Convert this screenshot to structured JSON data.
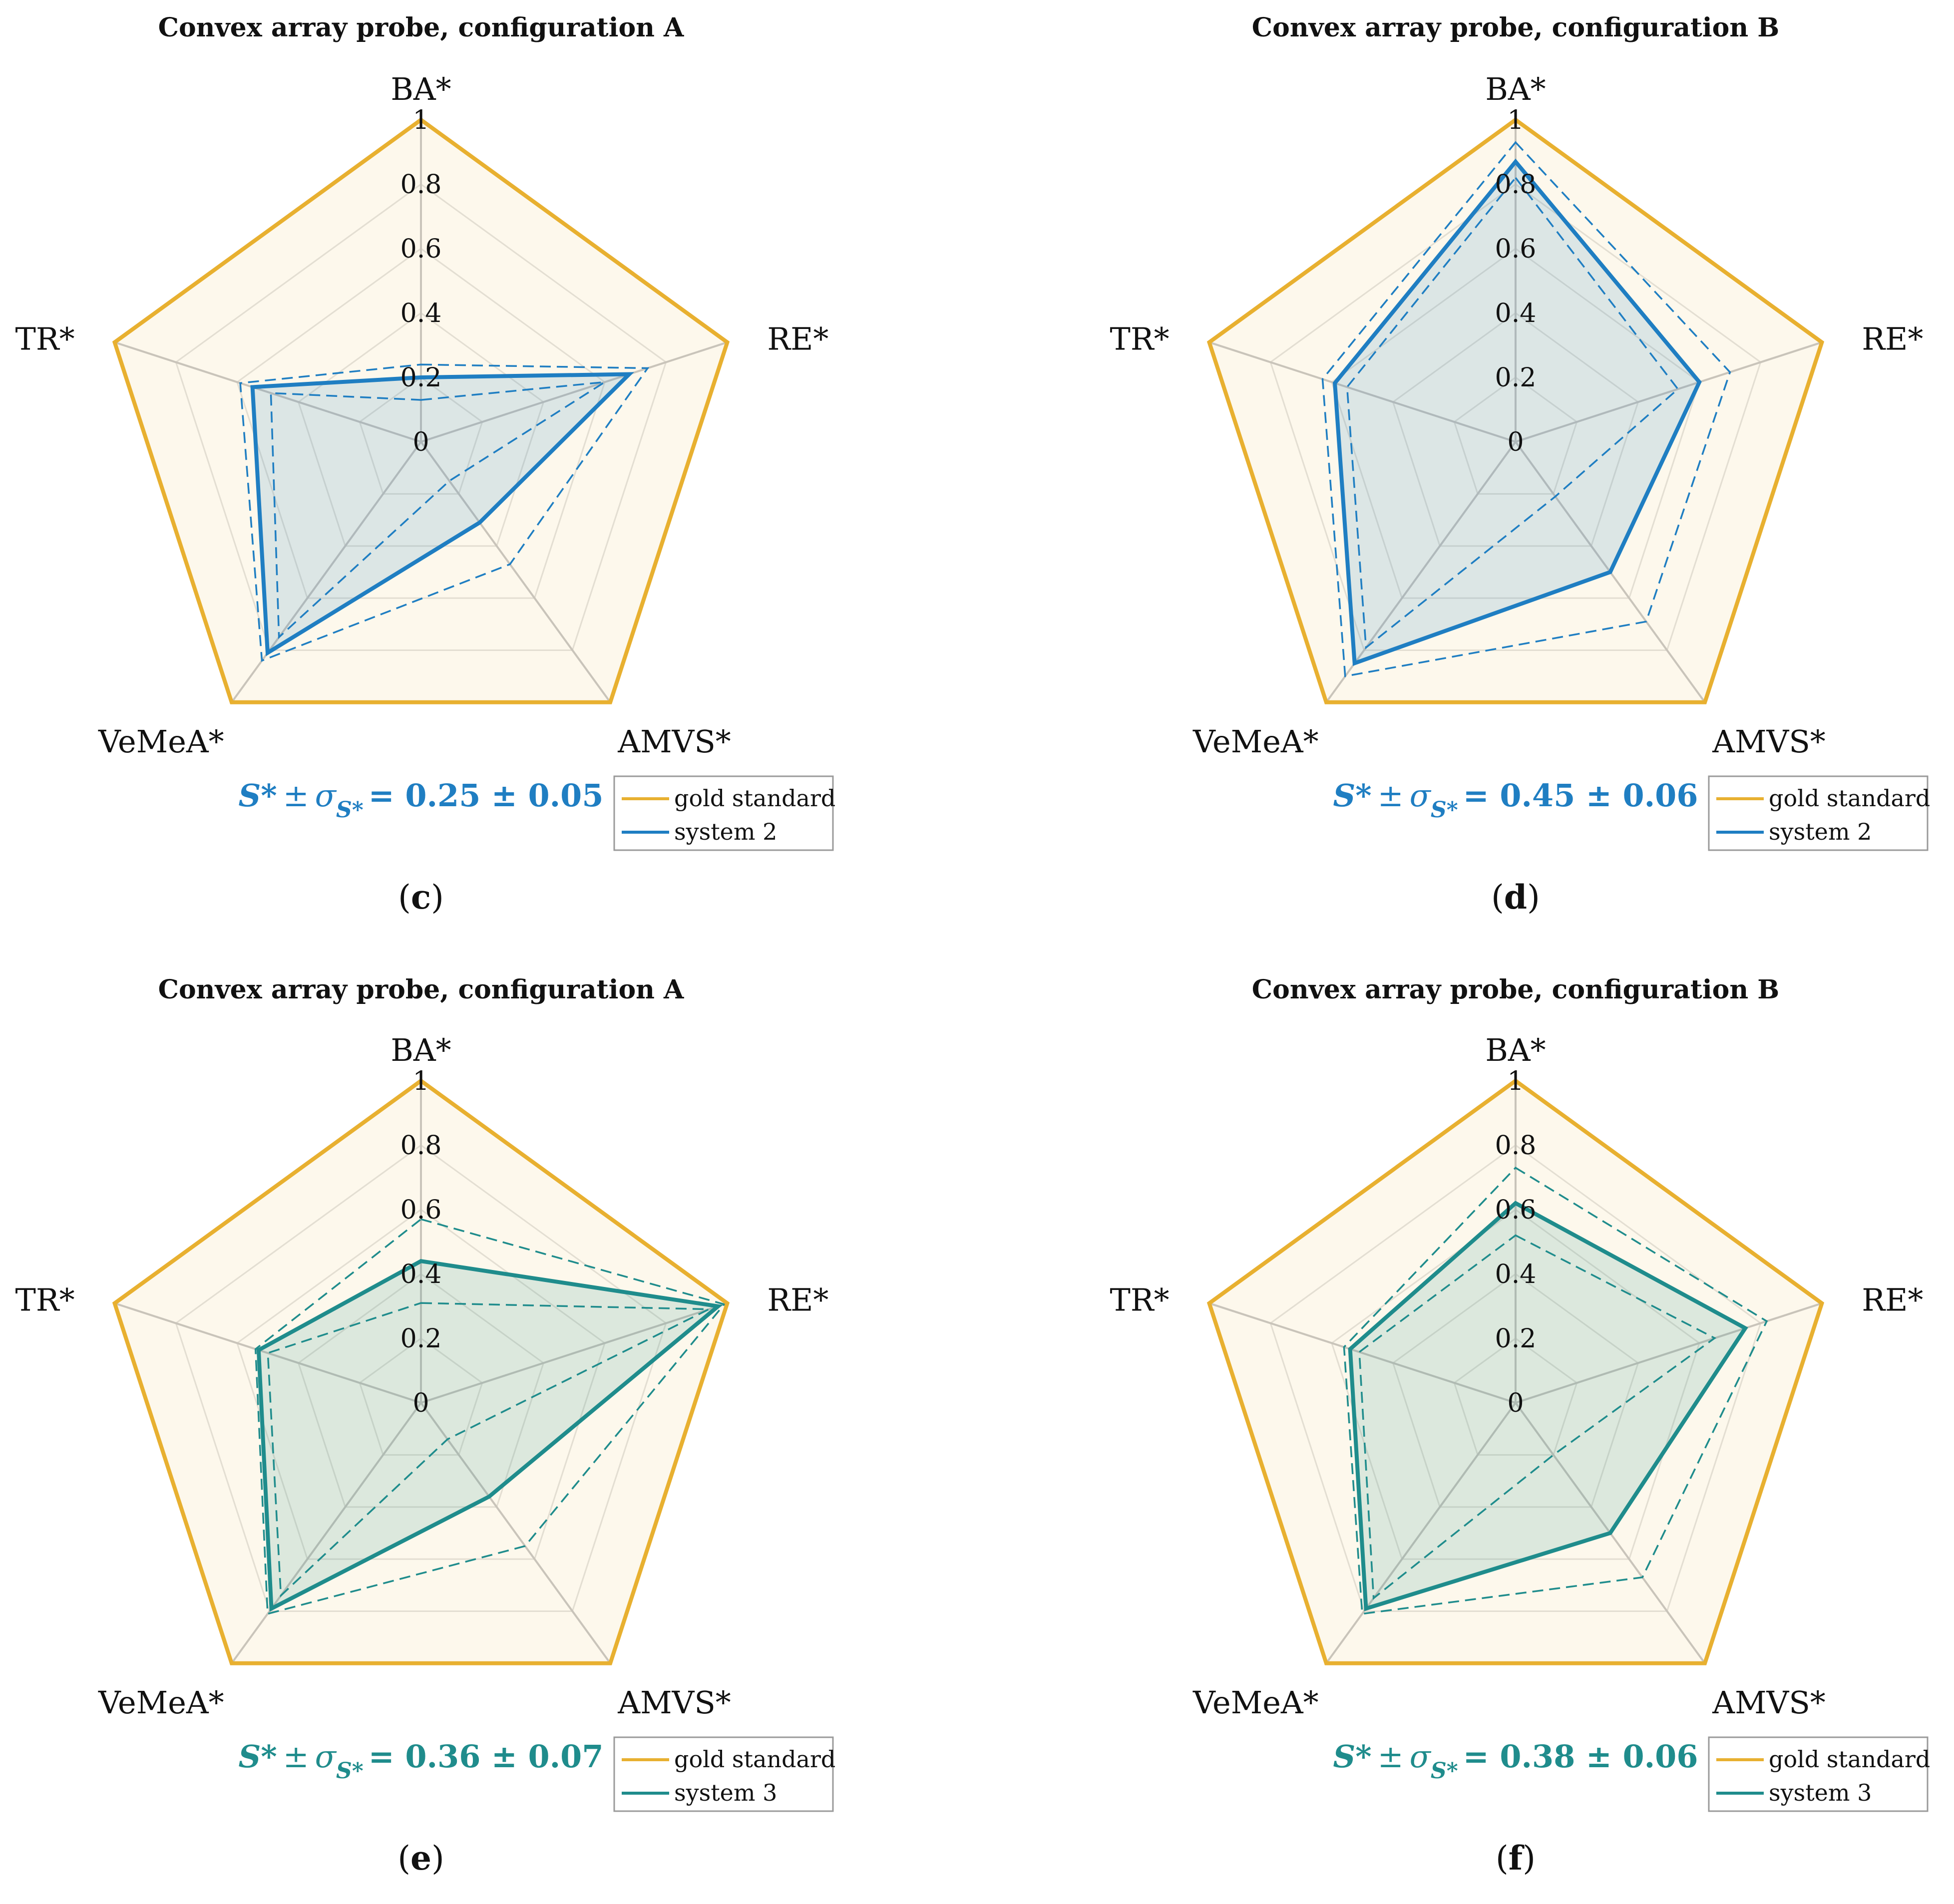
{
  "chart_data": [
    {
      "type": "radar",
      "panel": "c",
      "title": "Convex array probe, configuration A",
      "axes": [
        "BA*",
        "RE*",
        "AMVS*",
        "VeMeA*",
        "TR*"
      ],
      "ticks": [
        "0",
        "0.2",
        "0.4",
        "0.6",
        "0.8",
        "1"
      ],
      "range": [
        0,
        1
      ],
      "score_text": {
        "S": "S*",
        "pm": "±",
        "sigma": "σ",
        "sub": "S*",
        "rest": "= 0.25 ± 0.05"
      },
      "color": "#1f7ec2",
      "series": [
        {
          "name": "gold standard",
          "values": [
            1,
            1,
            1,
            1,
            1
          ],
          "color": "#e8b030"
        },
        {
          "name": "system 2",
          "values": [
            0.2,
            0.68,
            0.31,
            0.81,
            0.55
          ],
          "color": "#1f7ec2"
        }
      ],
      "bounds": {
        "upper": [
          0.24,
          0.74,
          0.47,
          0.84,
          0.59
        ],
        "lower": [
          0.13,
          0.6,
          0.15,
          0.75,
          0.49
        ]
      }
    },
    {
      "type": "radar",
      "panel": "d",
      "title": "Convex array probe, configuration B",
      "axes": [
        "BA*",
        "RE*",
        "AMVS*",
        "VeMeA*",
        "TR*"
      ],
      "ticks": [
        "0",
        "0.2",
        "0.4",
        "0.6",
        "0.8",
        "1"
      ],
      "range": [
        0,
        1
      ],
      "score_text": {
        "S": "S*",
        "pm": "±",
        "sigma": "σ",
        "sub": "S*",
        "rest": "= 0.45 ± 0.06"
      },
      "color": "#1f7ec2",
      "series": [
        {
          "name": "gold standard",
          "values": [
            1,
            1,
            1,
            1,
            1
          ],
          "color": "#e8b030"
        },
        {
          "name": "system 2",
          "values": [
            0.87,
            0.6,
            0.5,
            0.85,
            0.59
          ],
          "color": "#1f7ec2"
        }
      ],
      "bounds": {
        "upper": [
          0.93,
          0.7,
          0.69,
          0.9,
          0.63
        ],
        "lower": [
          0.82,
          0.53,
          0.21,
          0.79,
          0.55
        ]
      }
    },
    {
      "type": "radar",
      "panel": "e",
      "title": "Convex array probe, configuration A",
      "axes": [
        "BA*",
        "RE*",
        "AMVS*",
        "VeMeA*",
        "TR*"
      ],
      "ticks": [
        "0",
        "0.2",
        "0.4",
        "0.6",
        "0.8",
        "1"
      ],
      "range": [
        0,
        1
      ],
      "score_text": {
        "S": "S*",
        "pm": "±",
        "sigma": "σ",
        "sub": "S*",
        "rest": "= 0.36 ± 0.07"
      },
      "color": "#1f8c8c",
      "series": [
        {
          "name": "gold standard",
          "values": [
            1,
            1,
            1,
            1,
            1
          ],
          "color": "#e8b030"
        },
        {
          "name": "system 3",
          "values": [
            0.44,
            0.97,
            0.36,
            0.79,
            0.53
          ],
          "color": "#1f8c8c"
        }
      ],
      "bounds": {
        "upper": [
          0.57,
          0.99,
          0.55,
          0.81,
          0.54
        ],
        "lower": [
          0.31,
          0.94,
          0.14,
          0.74,
          0.5
        ]
      }
    },
    {
      "type": "radar",
      "panel": "f",
      "title": "Convex array probe, configuration B",
      "axes": [
        "BA*",
        "RE*",
        "AMVS*",
        "VeMeA*",
        "TR*"
      ],
      "ticks": [
        "0",
        "0.2",
        "0.4",
        "0.6",
        "0.8",
        "1"
      ],
      "range": [
        0,
        1
      ],
      "score_text": {
        "S": "S*",
        "pm": "±",
        "sigma": "σ",
        "sub": "S*",
        "rest": "= 0.38 ± 0.06"
      },
      "color": "#1f8c8c",
      "series": [
        {
          "name": "gold standard",
          "values": [
            1,
            1,
            1,
            1,
            1
          ],
          "color": "#e8b030"
        },
        {
          "name": "system 3",
          "values": [
            0.62,
            0.75,
            0.5,
            0.79,
            0.54
          ],
          "color": "#1f8c8c"
        }
      ],
      "bounds": {
        "upper": [
          0.73,
          0.82,
          0.67,
          0.81,
          0.56
        ],
        "lower": [
          0.52,
          0.65,
          0.2,
          0.75,
          0.51
        ]
      }
    }
  ]
}
